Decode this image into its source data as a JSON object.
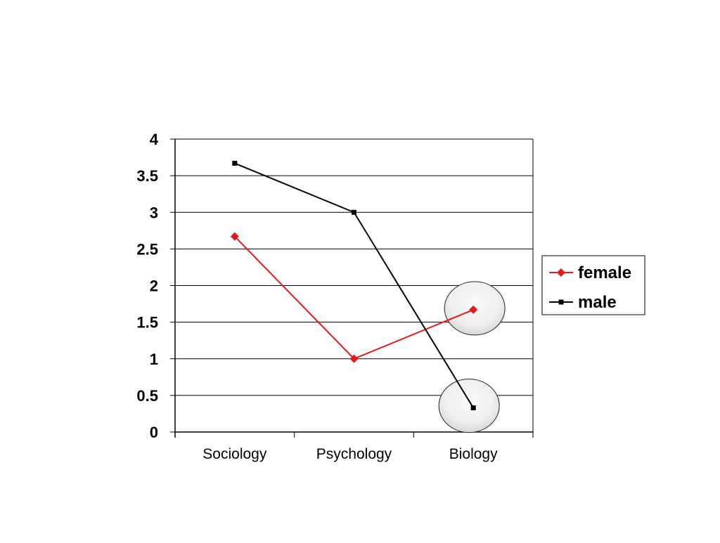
{
  "chart_data": {
    "type": "line",
    "categories": [
      "Sociology",
      "Psychology",
      "Biology"
    ],
    "series": [
      {
        "name": "female",
        "values": [
          2.67,
          1.0,
          1.67
        ],
        "color": "#e31a1c",
        "marker": "diamond"
      },
      {
        "name": "male",
        "values": [
          3.67,
          3.0,
          0.33
        ],
        "color": "#000000",
        "marker": "square"
      }
    ],
    "ylim": [
      0,
      4
    ],
    "yticks": [
      "0",
      "0.5",
      "1",
      "1.5",
      "2",
      "2.5",
      "3",
      "3.5",
      "4"
    ],
    "grid": true,
    "legend": "right",
    "highlighted_points": [
      {
        "series": "female",
        "category": "Biology"
      },
      {
        "series": "male",
        "category": "Biology"
      }
    ]
  }
}
